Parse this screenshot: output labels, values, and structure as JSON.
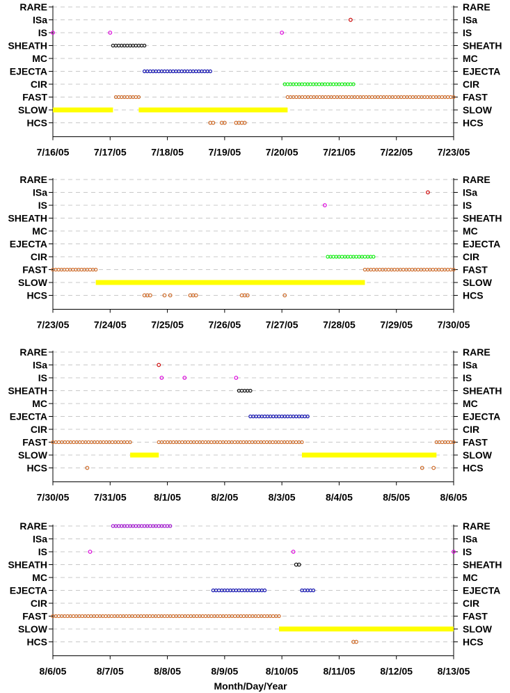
{
  "chart_data": {
    "type": "scatter",
    "categories": [
      "RARE",
      "ISa",
      "IS",
      "SHEATH",
      "MC",
      "EJECTA",
      "CIR",
      "FAST",
      "SLOW",
      "HCS"
    ],
    "xlabel": "Month/Day/Year",
    "colors": {
      "RARE": "#9900cc",
      "ISa": "#cc0000",
      "IS": "#dd00dd",
      "SHEATH": "#000000",
      "EJECTA": "#0000aa",
      "CIR": "#00ee00",
      "FAST": "#cc6622",
      "SLOW": "#ffff00",
      "HCS": "#cc6622"
    },
    "panels": [
      {
        "tick_labels": [
          "7/16/05",
          "7/17/05",
          "7/18/05",
          "7/19/05",
          "7/20/05",
          "7/21/05",
          "7/22/05",
          "7/23/05"
        ],
        "intervals": [
          {
            "category": "SLOW",
            "start": 0.0,
            "end": 1.05,
            "style": "bar"
          },
          {
            "category": "SLOW",
            "start": 1.5,
            "end": 4.1,
            "style": "bar"
          },
          {
            "category": "FAST",
            "start": 1.1,
            "end": 1.5
          },
          {
            "category": "FAST",
            "start": 4.1,
            "end": 7.0
          },
          {
            "category": "SHEATH",
            "start": 1.05,
            "end": 1.6
          },
          {
            "category": "EJECTA",
            "start": 1.6,
            "end": 2.75
          },
          {
            "category": "CIR",
            "start": 4.05,
            "end": 5.25
          }
        ],
        "points": [
          {
            "category": "IS",
            "x": 0.0
          },
          {
            "category": "IS",
            "x": 1.0
          },
          {
            "category": "IS",
            "x": 4.0
          },
          {
            "category": "ISa",
            "x": 5.2
          },
          {
            "category": "HCS",
            "x": 2.75
          },
          {
            "category": "HCS",
            "x": 2.8
          },
          {
            "category": "HCS",
            "x": 2.95
          },
          {
            "category": "HCS",
            "x": 3.0
          },
          {
            "category": "HCS",
            "x": 3.2
          },
          {
            "category": "HCS",
            "x": 3.25
          },
          {
            "category": "HCS",
            "x": 3.3
          },
          {
            "category": "HCS",
            "x": 3.35
          }
        ]
      },
      {
        "tick_labels": [
          "7/23/05",
          "7/24/05",
          "7/25/05",
          "7/26/05",
          "7/27/05",
          "7/28/05",
          "7/29/05",
          "7/30/05"
        ],
        "intervals": [
          {
            "category": "FAST",
            "start": 0.0,
            "end": 0.75
          },
          {
            "category": "SLOW",
            "start": 0.75,
            "end": 5.45,
            "style": "bar"
          },
          {
            "category": "FAST",
            "start": 5.45,
            "end": 7.0
          },
          {
            "category": "CIR",
            "start": 4.8,
            "end": 5.6
          }
        ],
        "points": [
          {
            "category": "IS",
            "x": 4.75
          },
          {
            "category": "ISa",
            "x": 6.55
          },
          {
            "category": "HCS",
            "x": 1.6
          },
          {
            "category": "HCS",
            "x": 1.65
          },
          {
            "category": "HCS",
            "x": 1.7
          },
          {
            "category": "HCS",
            "x": 1.95
          },
          {
            "category": "HCS",
            "x": 2.05
          },
          {
            "category": "HCS",
            "x": 2.4
          },
          {
            "category": "HCS",
            "x": 2.45
          },
          {
            "category": "HCS",
            "x": 2.5
          },
          {
            "category": "HCS",
            "x": 3.3
          },
          {
            "category": "HCS",
            "x": 3.35
          },
          {
            "category": "HCS",
            "x": 3.4
          },
          {
            "category": "HCS",
            "x": 4.05
          }
        ]
      },
      {
        "tick_labels": [
          "7/30/05",
          "7/31/05",
          "8/1/05",
          "8/2/05",
          "8/3/05",
          "8/4/05",
          "8/5/05",
          "8/6/05"
        ],
        "intervals": [
          {
            "category": "FAST",
            "start": 0.0,
            "end": 1.35
          },
          {
            "category": "SLOW",
            "start": 1.35,
            "end": 1.85,
            "style": "bar"
          },
          {
            "category": "FAST",
            "start": 1.85,
            "end": 4.35
          },
          {
            "category": "SLOW",
            "start": 4.35,
            "end": 6.7,
            "style": "bar"
          },
          {
            "category": "FAST",
            "start": 6.7,
            "end": 7.0
          },
          {
            "category": "SHEATH",
            "start": 3.25,
            "end": 3.45
          },
          {
            "category": "EJECTA",
            "start": 3.45,
            "end": 4.45
          }
        ],
        "points": [
          {
            "category": "ISa",
            "x": 1.85
          },
          {
            "category": "IS",
            "x": 1.9
          },
          {
            "category": "IS",
            "x": 2.3
          },
          {
            "category": "IS",
            "x": 3.2
          },
          {
            "category": "HCS",
            "x": 0.6
          },
          {
            "category": "HCS",
            "x": 6.45
          },
          {
            "category": "HCS",
            "x": 6.65
          }
        ]
      },
      {
        "tick_labels": [
          "8/6/05",
          "8/7/05",
          "8/8/05",
          "8/9/05",
          "8/10/05",
          "8/11/05",
          "8/12/05",
          "8/13/05"
        ],
        "intervals": [
          {
            "category": "RARE",
            "start": 1.05,
            "end": 2.05
          },
          {
            "category": "FAST",
            "start": 0.0,
            "end": 3.95
          },
          {
            "category": "SLOW",
            "start": 3.95,
            "end": 7.0,
            "style": "bar"
          },
          {
            "category": "EJECTA",
            "start": 2.8,
            "end": 3.7
          },
          {
            "category": "EJECTA",
            "start": 4.35,
            "end": 4.55
          }
        ],
        "points": [
          {
            "category": "IS",
            "x": 0.65
          },
          {
            "category": "IS",
            "x": 4.2
          },
          {
            "category": "IS",
            "x": 7.0
          },
          {
            "category": "SHEATH",
            "x": 4.25
          },
          {
            "category": "SHEATH",
            "x": 4.3
          },
          {
            "category": "HCS",
            "x": 5.25
          },
          {
            "category": "HCS",
            "x": 5.3
          }
        ]
      }
    ]
  }
}
